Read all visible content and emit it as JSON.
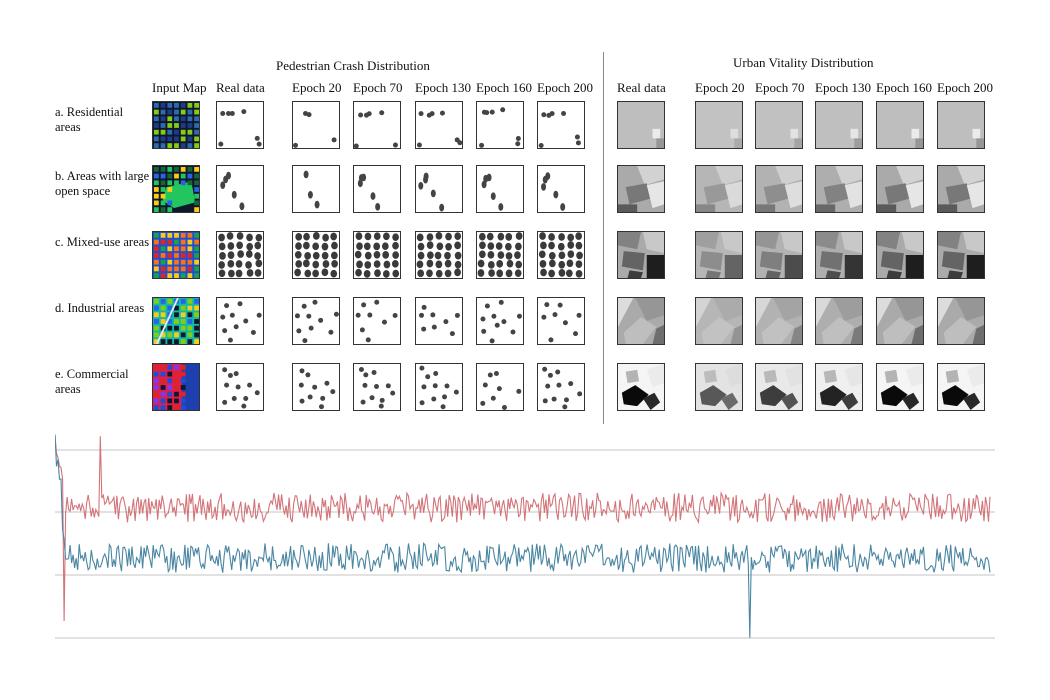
{
  "crash_title": "Pedestrian Crash Distribution",
  "vitality_title": "Urban Vitality Distribution",
  "crash_columns": [
    "Input Map",
    "Real data",
    "Epoch 20",
    "Epoch 70",
    "Epoch 130",
    "Epoch 160",
    "Epoch 200"
  ],
  "vitality_columns": [
    "Real data",
    "Epoch 20",
    "Epoch 70",
    "Epoch 130",
    "Epoch 160",
    "Epoch 200"
  ],
  "rows": [
    {
      "label": "a. Residential areas"
    },
    {
      "label": "b. Areas with large open space"
    },
    {
      "label": "c. Mixed-use areas"
    },
    {
      "label": "d. Industrial areas"
    },
    {
      "label": "e. Commercial areas"
    }
  ],
  "colors": {
    "series_a": "#d27479",
    "series_b": "#4a86a2",
    "grid": "#d9d9d9",
    "divider": "#8a8a8a"
  },
  "chart_data": {
    "type": "line",
    "title": "",
    "xlabel": "",
    "ylabel": "",
    "grid": true,
    "legend": "none",
    "series": [
      {
        "name": "",
        "color": "#d27479",
        "baseline": 0.64,
        "noise": 0.07,
        "start_peak": 0.92
      },
      {
        "name": "",
        "color": "#4a86a2",
        "baseline": 0.4,
        "noise": 0.07,
        "start_peak": 1.0
      }
    ]
  }
}
